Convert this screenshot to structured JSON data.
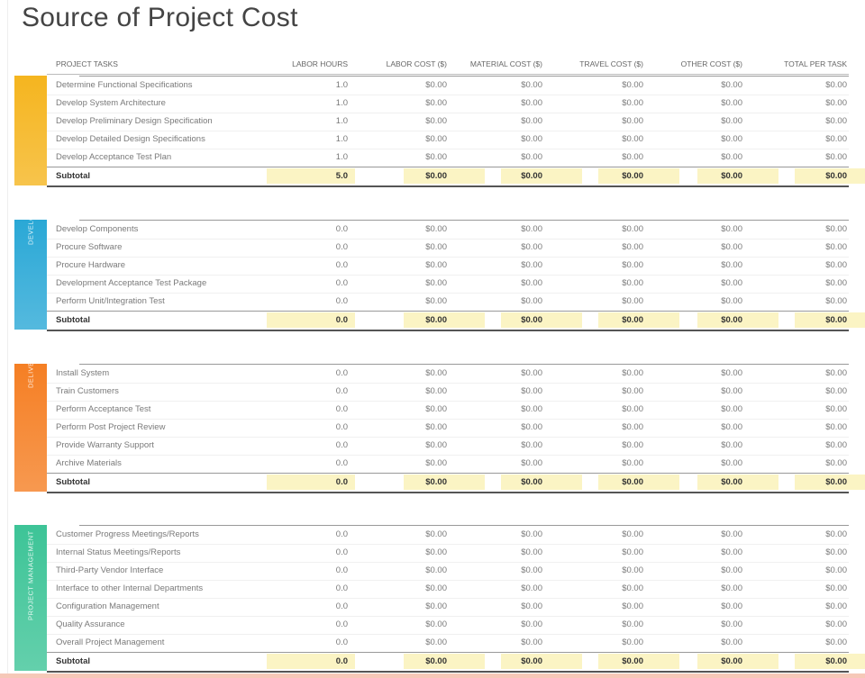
{
  "title": "Source of Project Cost",
  "columns": {
    "task": "PROJECT TASKS",
    "hours": "LABOR HOURS",
    "labor": "LABOR COST ($)",
    "material": "MATERIAL COST ($)",
    "travel": "TRAVEL COST ($)",
    "other": "OTHER COST ($)",
    "total": "TOTAL PER TASK"
  },
  "colors": {
    "band1": "#f5b51f",
    "band2": "#2aa8d6",
    "band3": "#f57f24",
    "band4": "#3dc497",
    "highlight": "#fbf4c4"
  },
  "sections": [
    {
      "band_label": "",
      "rows": [
        {
          "task": "Determine Functional Specifications",
          "hours": "1.0",
          "labor": "$0.00",
          "material": "$0.00",
          "travel": "$0.00",
          "other": "$0.00",
          "total": "$0.00"
        },
        {
          "task": "Develop System Architecture",
          "hours": "1.0",
          "labor": "$0.00",
          "material": "$0.00",
          "travel": "$0.00",
          "other": "$0.00",
          "total": "$0.00"
        },
        {
          "task": "Develop Preliminary Design Specification",
          "hours": "1.0",
          "labor": "$0.00",
          "material": "$0.00",
          "travel": "$0.00",
          "other": "$0.00",
          "total": "$0.00"
        },
        {
          "task": "Develop Detailed Design Specifications",
          "hours": "1.0",
          "labor": "$0.00",
          "material": "$0.00",
          "travel": "$0.00",
          "other": "$0.00",
          "total": "$0.00"
        },
        {
          "task": "Develop Acceptance Test Plan",
          "hours": "1.0",
          "labor": "$0.00",
          "material": "$0.00",
          "travel": "$0.00",
          "other": "$0.00",
          "total": "$0.00"
        }
      ],
      "subtotal": {
        "task": "Subtotal",
        "hours": "5.0",
        "labor": "$0.00",
        "material": "$0.00",
        "travel": "$0.00",
        "other": "$0.00",
        "total": "$0.00"
      }
    },
    {
      "band_label": "DEVELOPMENT",
      "rows": [
        {
          "task": "Develop Components",
          "hours": "0.0",
          "labor": "$0.00",
          "material": "$0.00",
          "travel": "$0.00",
          "other": "$0.00",
          "total": "$0.00"
        },
        {
          "task": "Procure Software",
          "hours": "0.0",
          "labor": "$0.00",
          "material": "$0.00",
          "travel": "$0.00",
          "other": "$0.00",
          "total": "$0.00"
        },
        {
          "task": "Procure Hardware",
          "hours": "0.0",
          "labor": "$0.00",
          "material": "$0.00",
          "travel": "$0.00",
          "other": "$0.00",
          "total": "$0.00"
        },
        {
          "task": "Development Acceptance Test Package",
          "hours": "0.0",
          "labor": "$0.00",
          "material": "$0.00",
          "travel": "$0.00",
          "other": "$0.00",
          "total": "$0.00"
        },
        {
          "task": "Perform Unit/Integration Test",
          "hours": "0.0",
          "labor": "$0.00",
          "material": "$0.00",
          "travel": "$0.00",
          "other": "$0.00",
          "total": "$0.00"
        }
      ],
      "subtotal": {
        "task": "Subtotal",
        "hours": "0.0",
        "labor": "$0.00",
        "material": "$0.00",
        "travel": "$0.00",
        "other": "$0.00",
        "total": "$0.00"
      }
    },
    {
      "band_label": "DELIVERY",
      "rows": [
        {
          "task": "Install System",
          "hours": "0.0",
          "labor": "$0.00",
          "material": "$0.00",
          "travel": "$0.00",
          "other": "$0.00",
          "total": "$0.00"
        },
        {
          "task": "Train Customers",
          "hours": "0.0",
          "labor": "$0.00",
          "material": "$0.00",
          "travel": "$0.00",
          "other": "$0.00",
          "total": "$0.00"
        },
        {
          "task": "Perform Acceptance Test",
          "hours": "0.0",
          "labor": "$0.00",
          "material": "$0.00",
          "travel": "$0.00",
          "other": "$0.00",
          "total": "$0.00"
        },
        {
          "task": "Perform Post Project Review",
          "hours": "0.0",
          "labor": "$0.00",
          "material": "$0.00",
          "travel": "$0.00",
          "other": "$0.00",
          "total": "$0.00"
        },
        {
          "task": "Provide Warranty Support",
          "hours": "0.0",
          "labor": "$0.00",
          "material": "$0.00",
          "travel": "$0.00",
          "other": "$0.00",
          "total": "$0.00"
        },
        {
          "task": "Archive Materials",
          "hours": "0.0",
          "labor": "$0.00",
          "material": "$0.00",
          "travel": "$0.00",
          "other": "$0.00",
          "total": "$0.00"
        }
      ],
      "subtotal": {
        "task": "Subtotal",
        "hours": "0.0",
        "labor": "$0.00",
        "material": "$0.00",
        "travel": "$0.00",
        "other": "$0.00",
        "total": "$0.00"
      }
    },
    {
      "band_label": "PROJECT MANAGEMENT",
      "rows": [
        {
          "task": "Customer Progress Meetings/Reports",
          "hours": "0.0",
          "labor": "$0.00",
          "material": "$0.00",
          "travel": "$0.00",
          "other": "$0.00",
          "total": "$0.00"
        },
        {
          "task": "Internal Status Meetings/Reports",
          "hours": "0.0",
          "labor": "$0.00",
          "material": "$0.00",
          "travel": "$0.00",
          "other": "$0.00",
          "total": "$0.00"
        },
        {
          "task": "Third-Party Vendor Interface",
          "hours": "0.0",
          "labor": "$0.00",
          "material": "$0.00",
          "travel": "$0.00",
          "other": "$0.00",
          "total": "$0.00"
        },
        {
          "task": "Interface to other Internal Departments",
          "hours": "0.0",
          "labor": "$0.00",
          "material": "$0.00",
          "travel": "$0.00",
          "other": "$0.00",
          "total": "$0.00"
        },
        {
          "task": "Configuration Management",
          "hours": "0.0",
          "labor": "$0.00",
          "material": "$0.00",
          "travel": "$0.00",
          "other": "$0.00",
          "total": "$0.00"
        },
        {
          "task": "Quality Assurance",
          "hours": "0.0",
          "labor": "$0.00",
          "material": "$0.00",
          "travel": "$0.00",
          "other": "$0.00",
          "total": "$0.00"
        },
        {
          "task": "Overall Project Management",
          "hours": "0.0",
          "labor": "$0.00",
          "material": "$0.00",
          "travel": "$0.00",
          "other": "$0.00",
          "total": "$0.00"
        }
      ],
      "subtotal": {
        "task": "Subtotal",
        "hours": "0.0",
        "labor": "$0.00",
        "material": "$0.00",
        "travel": "$0.00",
        "other": "$0.00",
        "total": "$0.00"
      }
    }
  ]
}
